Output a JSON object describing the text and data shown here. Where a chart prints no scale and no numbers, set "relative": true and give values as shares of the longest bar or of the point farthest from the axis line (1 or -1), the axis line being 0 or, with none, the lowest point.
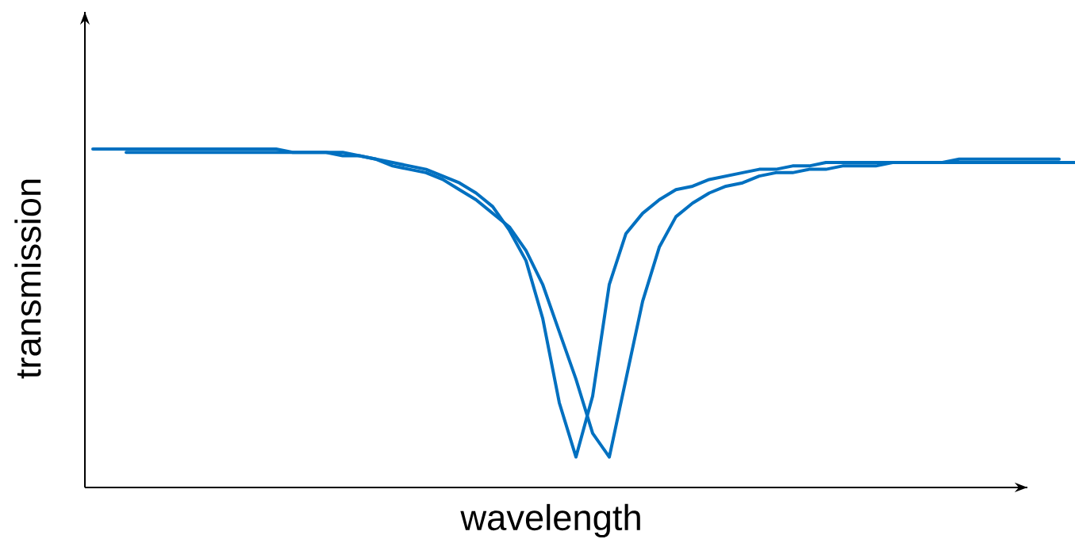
{
  "chart_data": {
    "type": "line",
    "relative": true,
    "xlabel": "wavelength",
    "ylabel": "transmission",
    "marker": "none",
    "line_style": "solid",
    "categories": [
      null,
      null,
      null,
      null,
      null,
      null,
      null,
      null,
      null,
      null,
      null,
      null,
      null,
      null,
      null,
      null,
      null,
      null,
      null,
      null,
      null,
      null,
      null,
      null,
      null,
      null,
      null,
      null,
      null,
      null,
      null,
      null,
      null,
      null,
      null,
      null,
      null,
      null,
      null,
      null,
      null,
      null,
      null,
      null,
      null,
      null,
      null,
      null,
      null,
      null,
      null,
      null,
      null,
      null,
      null,
      null,
      null,
      null,
      null,
      null
    ],
    "series": [
      {
        "color": "#0070c0",
        "values": [
          1.0,
          1.0,
          1.0,
          1.0,
          1.0,
          1.0,
          1.0,
          1.0,
          1.0,
          1.0,
          1.0,
          1.0,
          0.99,
          0.99,
          0.99,
          0.99,
          0.98,
          0.97,
          0.96,
          0.95,
          0.94,
          0.92,
          0.9,
          0.87,
          0.83,
          0.76,
          0.67,
          0.5,
          0.25,
          0.09,
          0.27,
          0.6,
          0.75,
          0.81,
          0.85,
          0.88,
          0.89,
          0.91,
          0.92,
          0.93,
          0.94,
          0.94,
          0.95,
          0.95,
          0.96,
          0.96,
          0.96,
          0.96,
          0.96,
          0.96,
          0.96,
          0.96,
          0.97,
          0.97,
          0.97,
          0.97,
          0.97,
          0.97,
          0.97,
          null
        ]
      },
      {
        "color": "#0070c0",
        "values": [
          null,
          null,
          0.99,
          0.99,
          0.99,
          0.99,
          0.99,
          0.99,
          0.99,
          0.99,
          0.99,
          0.99,
          0.99,
          0.99,
          0.99,
          0.98,
          0.98,
          0.97,
          0.95,
          0.94,
          0.93,
          0.91,
          0.88,
          0.85,
          0.81,
          0.77,
          0.7,
          0.6,
          0.46,
          0.32,
          0.16,
          0.09,
          0.32,
          0.55,
          0.71,
          0.8,
          0.84,
          0.87,
          0.89,
          0.9,
          0.92,
          0.93,
          0.93,
          0.94,
          0.94,
          0.95,
          0.95,
          0.95,
          0.96,
          0.96,
          0.96,
          0.96,
          0.96,
          0.96,
          0.96,
          0.96,
          0.96,
          0.96,
          0.96,
          0.96
        ]
      }
    ]
  }
}
